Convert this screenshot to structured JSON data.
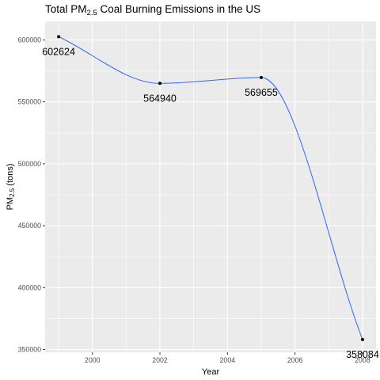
{
  "chart_data": {
    "type": "line",
    "title_main": "Total PM",
    "title_sub": "2.5",
    "title_rest": " Coal Burning Emissions in the US",
    "xlabel": "Year",
    "ylabel_main": "PM",
    "ylabel_sub": "2.5",
    "ylabel_rest": " (tons)",
    "xlim": [
      1998.6,
      2008.4
    ],
    "ylim": [
      347800,
      615000
    ],
    "x_ticks": [
      2000,
      2002,
      2004,
      2006,
      2008
    ],
    "x_tick_labels": [
      "2000",
      "2002",
      "2004",
      "2006",
      "2008"
    ],
    "y_ticks": [
      350000,
      400000,
      450000,
      500000,
      550000,
      600000
    ],
    "y_tick_labels": [
      "350000",
      "400000",
      "450000",
      "500000",
      "550000",
      "600000"
    ],
    "grid": true,
    "series": [
      {
        "x": [
          1999,
          2002,
          2005,
          2008
        ],
        "values": [
          602624,
          564940,
          569655,
          358084
        ],
        "labels": [
          "602624",
          "564940",
          "569655",
          "358084"
        ],
        "point_color": "#000000",
        "smooth_color": "#3366ff"
      }
    ],
    "panel_color": "#ebebeb",
    "grid_color": "#ffffff"
  }
}
